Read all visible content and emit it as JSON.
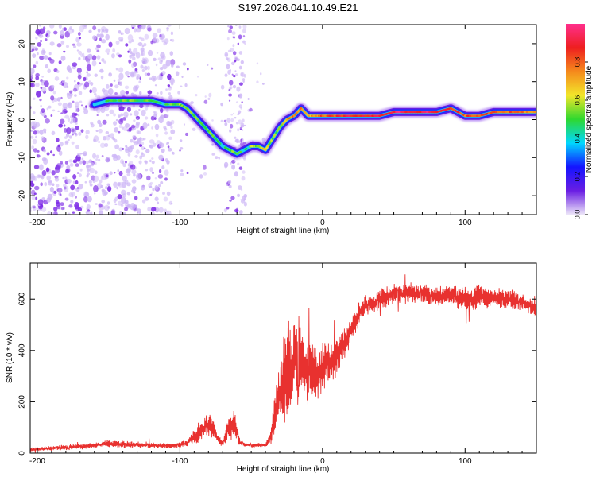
{
  "figure_title": "S197.2026.041.10.49.E21",
  "colors": {
    "snr_line": "#e8312f",
    "points": "#7d2be6",
    "points_light": "#cdb6f6"
  },
  "colorbar": {
    "label": "Normalized spectral amplitude",
    "range": [
      0,
      1
    ],
    "ticks": [
      "0.0",
      "0.2",
      "0.4",
      "0.6",
      "0.8"
    ],
    "tick_values": [
      0,
      0.2,
      0.4,
      0.6,
      0.8
    ],
    "stops": [
      "#ece6f8",
      "#6a1ee3",
      "#1414ff",
      "#00d8ff",
      "#2fd82f",
      "#f2e62a",
      "#f58a1c",
      "#ee1f1f",
      "#ff2f8c"
    ]
  },
  "chart_data": [
    {
      "type": "scatter",
      "name": "spectrogram",
      "xlabel": "Height of straight line (km)",
      "ylabel": "Frequency (Hz)",
      "xlim": [
        -205,
        150
      ],
      "ylim": [
        -25,
        25
      ],
      "xticks": [
        -200,
        -100,
        0,
        100
      ],
      "xtick_labels": [
        "-200",
        "-100",
        "0",
        "100"
      ],
      "yticks": [
        -20,
        -10,
        0,
        10,
        20
      ],
      "ytick_labels": [
        "-20",
        "-10",
        "0",
        "10",
        "20"
      ],
      "ridge": {
        "x": [
          -160,
          -150,
          -140,
          -130,
          -120,
          -110,
          -100,
          -95,
          -90,
          -85,
          -80,
          -75,
          -70,
          -65,
          -60,
          -55,
          -50,
          -45,
          -40,
          -35,
          -30,
          -25,
          -20,
          -15,
          -10,
          -5,
          0,
          10,
          20,
          30,
          40,
          50,
          60,
          70,
          80,
          90,
          100,
          110,
          120,
          130,
          140,
          150
        ],
        "y": [
          4,
          5,
          5,
          5,
          5,
          4,
          4,
          3,
          1,
          -1,
          -3,
          -5,
          -7,
          -8,
          -9,
          -8,
          -7,
          -7,
          -8,
          -5,
          -2,
          0,
          1,
          3,
          1,
          1,
          1,
          1,
          1,
          1,
          1,
          2,
          2,
          2,
          2,
          3,
          1,
          1,
          2,
          2,
          2,
          2
        ],
        "amplitude": [
          0.3,
          0.45,
          0.55,
          0.5,
          0.5,
          0.45,
          0.55,
          0.55,
          0.5,
          0.5,
          0.55,
          0.5,
          0.45,
          0.5,
          0.55,
          0.4,
          0.55,
          0.6,
          0.65,
          0.55,
          0.5,
          0.7,
          0.8,
          0.75,
          0.7,
          0.75,
          0.8,
          0.85,
          0.9,
          0.85,
          0.9,
          0.95,
          0.95,
          0.95,
          0.9,
          0.85,
          0.8,
          0.85,
          0.85,
          0.8,
          0.75,
          0.7
        ]
      }
    },
    {
      "type": "line",
      "name": "snr",
      "xlabel": "Height of straight line (km)",
      "ylabel": "SNR (10 * v/v)",
      "xlim": [
        -205,
        150
      ],
      "ylim": [
        0,
        740
      ],
      "xticks": [
        -200,
        -100,
        0,
        100
      ],
      "xtick_labels": [
        "-200",
        "-100",
        "0",
        "100"
      ],
      "yticks": [
        0,
        200,
        400,
        600
      ],
      "ytick_labels": [
        "0",
        "200",
        "400",
        "600"
      ],
      "series": [
        {
          "name": "SNR",
          "x": [
            -205,
            -180,
            -160,
            -150,
            -130,
            -115,
            -105,
            -95,
            -88,
            -82,
            -78,
            -74,
            -70,
            -66,
            -62,
            -58,
            -54,
            -50,
            -45,
            -40,
            -36,
            -32,
            -28,
            -24,
            -20,
            -16,
            -12,
            -8,
            -4,
            0,
            5,
            10,
            15,
            20,
            25,
            30,
            40,
            50,
            60,
            70,
            80,
            90,
            100,
            110,
            120,
            130,
            140,
            150
          ],
          "mean": [
            15,
            22,
            30,
            38,
            33,
            30,
            28,
            40,
            75,
            105,
            110,
            60,
            35,
            100,
            115,
            40,
            32,
            30,
            32,
            30,
            70,
            190,
            260,
            320,
            360,
            350,
            320,
            310,
            300,
            330,
            350,
            380,
            430,
            480,
            540,
            575,
            600,
            620,
            625,
            620,
            610,
            615,
            600,
            610,
            605,
            600,
            590,
            560
          ],
          "amp": [
            6,
            8,
            8,
            12,
            10,
            8,
            8,
            10,
            25,
            40,
            45,
            15,
            8,
            40,
            45,
            10,
            6,
            6,
            6,
            6,
            25,
            90,
            130,
            140,
            150,
            130,
            90,
            90,
            80,
            70,
            60,
            55,
            45,
            40,
            35,
            30,
            28,
            30,
            30,
            30,
            28,
            30,
            35,
            35,
            30,
            30,
            28,
            25
          ]
        }
      ]
    }
  ]
}
